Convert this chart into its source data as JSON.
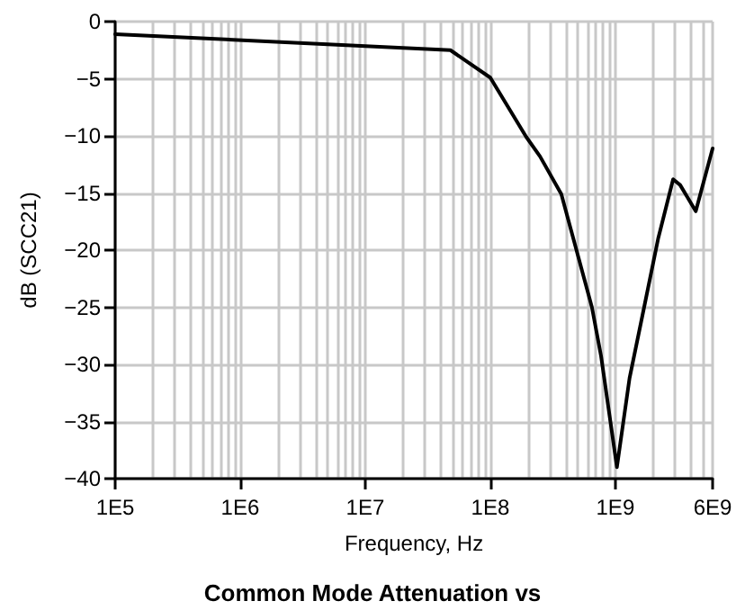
{
  "chart_data": {
    "type": "line",
    "title": "Common Mode Attenuation vs",
    "xlabel": "Frequency, Hz",
    "ylabel": "dB (SCC21)",
    "log": "x",
    "grid": true,
    "marker": "none",
    "line_style": "solid",
    "x": [
      100000.0,
      48000000.0,
      100000000.0,
      194000000.0,
      250000000.0,
      370000000.0,
      650000000.0,
      770000000.0,
      1030000000.0,
      1300000000.0,
      1700000000.0,
      2200000000.0,
      2900000000.0,
      3300000000.0,
      4400000000.0,
      6000000000.0
    ],
    "series": [
      {
        "color": "#000000",
        "values": [
          -1.1,
          -2.5,
          -4.9,
          -10.1,
          -11.8,
          -15.1,
          -25,
          -29.3,
          -39,
          -31.2,
          -25,
          -19,
          -13.8,
          -14.3,
          -16.6,
          -11.1
        ]
      }
    ],
    "xlim": [
      100000.0,
      6000000000.0
    ],
    "xticks": [
      {
        "value": 100000.0,
        "label": "1E5"
      },
      {
        "value": 1000000.0,
        "label": "1E6"
      },
      {
        "value": 10000000.0,
        "label": "1E7"
      },
      {
        "value": 100000000.0,
        "label": "1E8"
      },
      {
        "value": 1000000000.0,
        "label": "1E9"
      },
      {
        "value": 6000000000.0,
        "label": "6E9"
      }
    ],
    "ylim": [
      -40,
      0
    ],
    "yticks": [
      0,
      -5,
      -10,
      -15,
      -20,
      -25,
      -30,
      -35,
      -40
    ]
  }
}
